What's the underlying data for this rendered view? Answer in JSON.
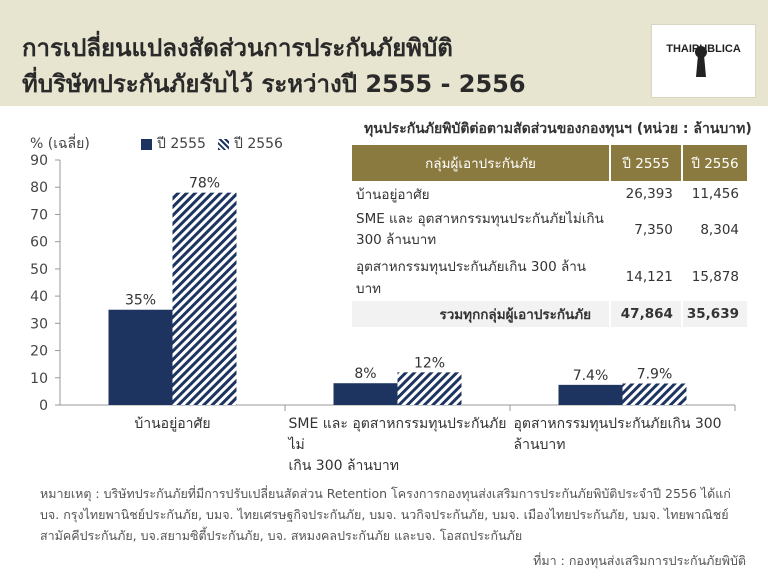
{
  "title_line1": "การเปลี่ยนแปลงสัดส่วนการประกันภัยพิบัติ",
  "title_line2": "ที่บริษัทประกันภัยรับไว้ ระหว่างปี 2555 - 2556",
  "logo_text": "THAIPUBLICA",
  "chart_data": {
    "type": "bar",
    "ylabel": "% (เฉลี่ย)",
    "ylim": [
      0,
      90
    ],
    "yticks": [
      0,
      10,
      20,
      30,
      40,
      50,
      60,
      70,
      80,
      90
    ],
    "categories": [
      "บ้านอยู่อาศัย",
      "SME และ อุตสาหกรรมทุนประกันภัยไม่เกิน 300 ล้านบาท",
      "อุตสาหกรรมทุนประกันภัยเกิน 300 ล้านบาท"
    ],
    "category_lines": [
      [
        "บ้านอยู่อาศัย"
      ],
      [
        "SME และ อุตสาหกรรมทุนประกันภัยไม่",
        "เกิน 300 ล้านบาท"
      ],
      [
        "อุตสาหกรรมทุนประกันภัยเกิน 300",
        "ล้านบาท"
      ]
    ],
    "series": [
      {
        "name": "ปี 2555",
        "values": [
          35,
          8,
          7.4
        ],
        "labels": [
          "35%",
          "8%",
          "7.4%"
        ],
        "color": "#1d3461",
        "pattern": "solid"
      },
      {
        "name": "ปี 2556",
        "values": [
          78,
          12,
          7.9
        ],
        "labels": [
          "78%",
          "12%",
          "7.9%"
        ],
        "color": "#1d3461",
        "pattern": "hatched"
      }
    ],
    "grid": false,
    "legend_position": "top"
  },
  "table": {
    "title": "ทุนประกันภัยพิบัติต่อตามสัดส่วนของกองทุนฯ (หน่วย : ล้านบาท)",
    "headers": [
      "กลุ่มผู้เอาประกันภัย",
      "ปี 2555",
      "ปี 2556"
    ],
    "rows": [
      {
        "group": "บ้านอยู่อาศัย",
        "y2555": "26,393",
        "y2556": "11,456"
      },
      {
        "group": "SME และ อุตสาหกรรมทุนประกันภัยไม่เกิน 300 ล้านบาท",
        "y2555": "7,350",
        "y2556": "8,304"
      },
      {
        "group": "อุตสาหกรรมทุนประกันภัยเกิน 300 ล้านบาท",
        "y2555": "14,121",
        "y2556": "15,878"
      }
    ],
    "total": {
      "group": "รวมทุกกลุ่มผู้เอาประกันภัย",
      "y2555": "47,864",
      "y2556": "35,639"
    }
  },
  "note": "หมายเหตุ : บริษัทประกันภัยที่มีการปรับเปลี่ยนสัดส่วน Retention โครงการกองทุนส่งเสริมการประกันภัยพิบัติประจำปี 2556 ได้แก่ บจ. กรุงไทยพานิชย์ประกันภัย, บมจ. ไทยเศรษฐกิจประกันภัย, บมจ. นวกิจประกันภัย, บมจ. เมืองไทยประกันภัย, บมจ. ไทยพาณิชย์สามัคคีประกันภัย, บจ.สยามซิตี้ประกันภัย, บจ. สหมงคลประกันภัย และบจ. โอสถประกันภัย",
  "source": "ที่มา : กองทุนส่งเสริมการประกันภัยพิบัติ"
}
